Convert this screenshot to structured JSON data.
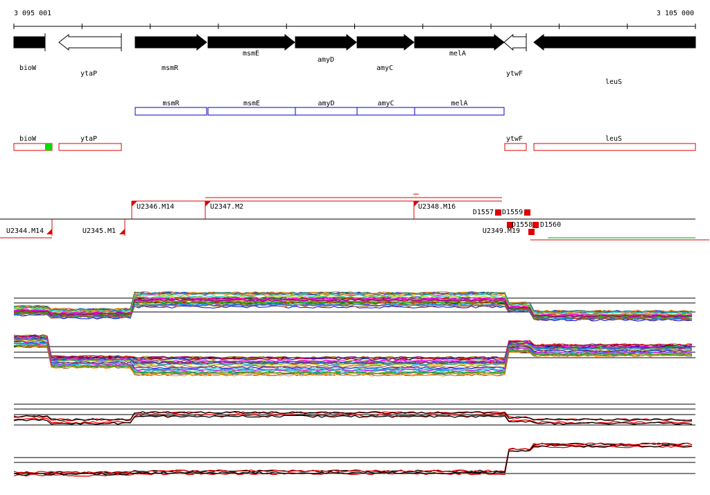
{
  "ruler": {
    "start": "3 095 001",
    "end": "3 105 000"
  },
  "genes": [
    "bioW",
    "ytaP",
    "msmR",
    "msmE",
    "amyD",
    "amyC",
    "melA",
    "ytwF",
    "leuS"
  ],
  "blue_track": [
    "msmR",
    "msmE",
    "amyD",
    "amyC",
    "melA"
  ],
  "red_track": [
    "bioW",
    "ytaP",
    "ytwF",
    "leuS"
  ],
  "features": [
    "U2346.M14",
    "U2347.M2",
    "U2348.M16",
    "D1557",
    "D1559",
    "U2344.M14",
    "U2345.M1",
    "D1558",
    "D1560",
    "U2349.M19"
  ]
}
